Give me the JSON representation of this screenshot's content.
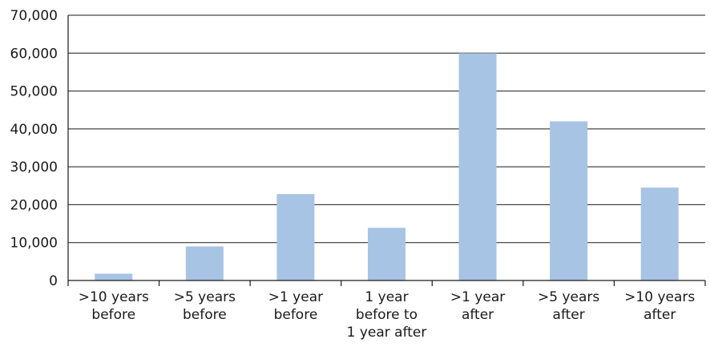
{
  "chart_data": {
    "type": "bar",
    "categories": [
      ">10 years before",
      ">5 years before",
      ">1 year before",
      "1 year before to 1 year after",
      ">1 year after",
      ">5 years after",
      ">10 years after"
    ],
    "category_lines": [
      [
        ">10 years",
        "before"
      ],
      [
        ">5 years",
        "before"
      ],
      [
        ">1 year",
        "before"
      ],
      [
        "1 year",
        "before to",
        "1 year after"
      ],
      [
        ">1 year",
        "after"
      ],
      [
        ">5 years",
        "after"
      ],
      [
        ">10 years",
        "after"
      ]
    ],
    "values": [
      1800,
      9000,
      22800,
      13900,
      60000,
      42000,
      24500
    ],
    "ylim": [
      0,
      70000
    ],
    "yticks": [
      0,
      10000,
      20000,
      30000,
      40000,
      50000,
      60000,
      70000
    ],
    "ytick_labels": [
      "0",
      "10,000",
      "20,000",
      "30,000",
      "40,000",
      "50,000",
      "60,000",
      "70,000"
    ],
    "grid": true,
    "legend": "none",
    "title": "",
    "xlabel": "",
    "ylabel": "",
    "bar_color": "#a7c4e5",
    "axis_color": "#1a1a1a"
  }
}
